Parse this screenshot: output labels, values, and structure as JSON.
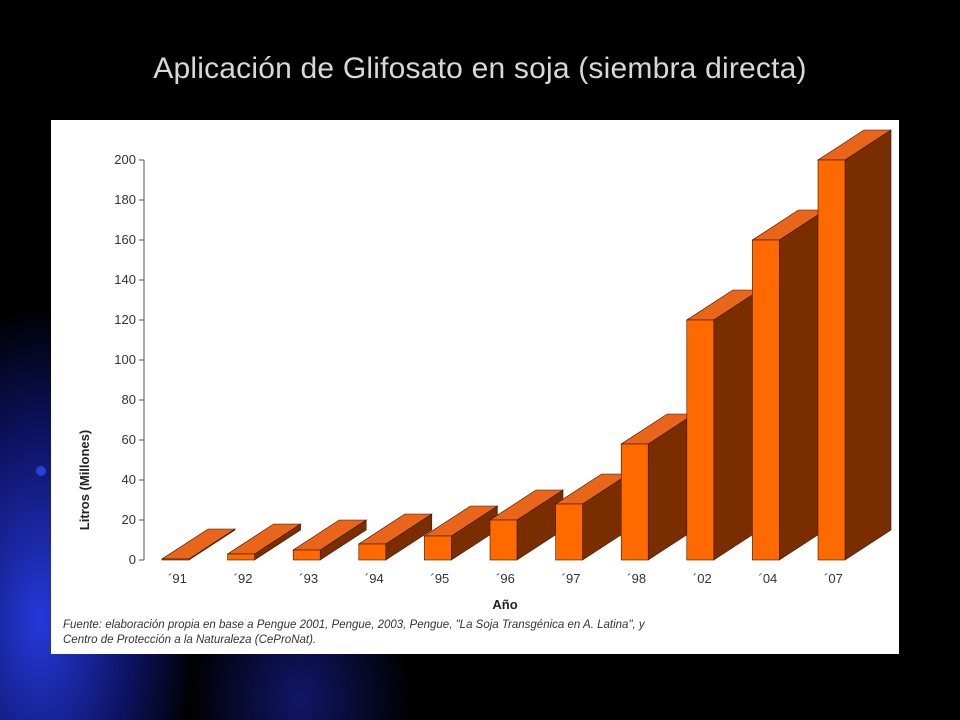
{
  "slide": {
    "title": "Aplicación de Glifosato en soja (siembra directa)"
  },
  "colors": {
    "bar_front": "#ff6a00",
    "bar_top": "#e8651a",
    "bar_side": "#7a2e00",
    "axis": "#555555"
  },
  "chart_data": {
    "type": "bar",
    "style": "3d",
    "title": "",
    "xlabel": "Año",
    "ylabel": "Litros (Millones)",
    "ylim": [
      0,
      200
    ],
    "yticks": [
      0,
      20,
      40,
      60,
      80,
      100,
      120,
      140,
      160,
      180,
      200
    ],
    "categories": [
      "´91",
      "´92",
      "´93",
      "´94",
      "´95",
      "´96",
      "´97",
      "´98",
      "´02",
      "´04",
      "´07"
    ],
    "values": [
      0.5,
      3,
      5,
      8,
      12,
      20,
      28,
      58,
      120,
      160,
      200
    ],
    "grid": false,
    "legend": "none"
  },
  "source": {
    "line1": "Fuente: elaboración propia en base a Pengue 2001, Pengue, 2003, Pengue,  \"La Soja Transgénica en A. Latina\",  y",
    "line2": "Centro de Protección a la Naturaleza (CeProNat)."
  }
}
